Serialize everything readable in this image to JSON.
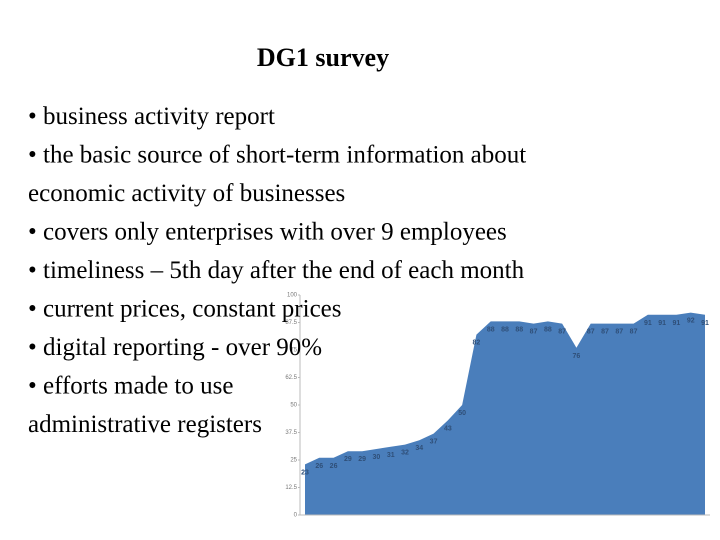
{
  "title": "DG1 survey",
  "lines": [
    "• business activity report",
    "• the basic source of short-term information about",
    "economic activity of businesses",
    "• covers only enterprises with over 9 employees",
    "• timeliness – 5th day after the end of each month",
    "• current prices, constant prices",
    "• digital reporting - over 90%",
    "• efforts made to use",
    "administrative registers"
  ],
  "chart_data": {
    "type": "area",
    "color": "#4a7ebb",
    "values": [
      23,
      26,
      26,
      29,
      29,
      30,
      31,
      32,
      34,
      37,
      43,
      50,
      82,
      88,
      88,
      88,
      87,
      88,
      87,
      76,
      87,
      87,
      87,
      87,
      91,
      91,
      91,
      92,
      91
    ],
    "ylim": [
      0,
      100
    ],
    "yticks": [
      0,
      12.5,
      25,
      37.5,
      50,
      62.5,
      75,
      87.5,
      100
    ]
  }
}
